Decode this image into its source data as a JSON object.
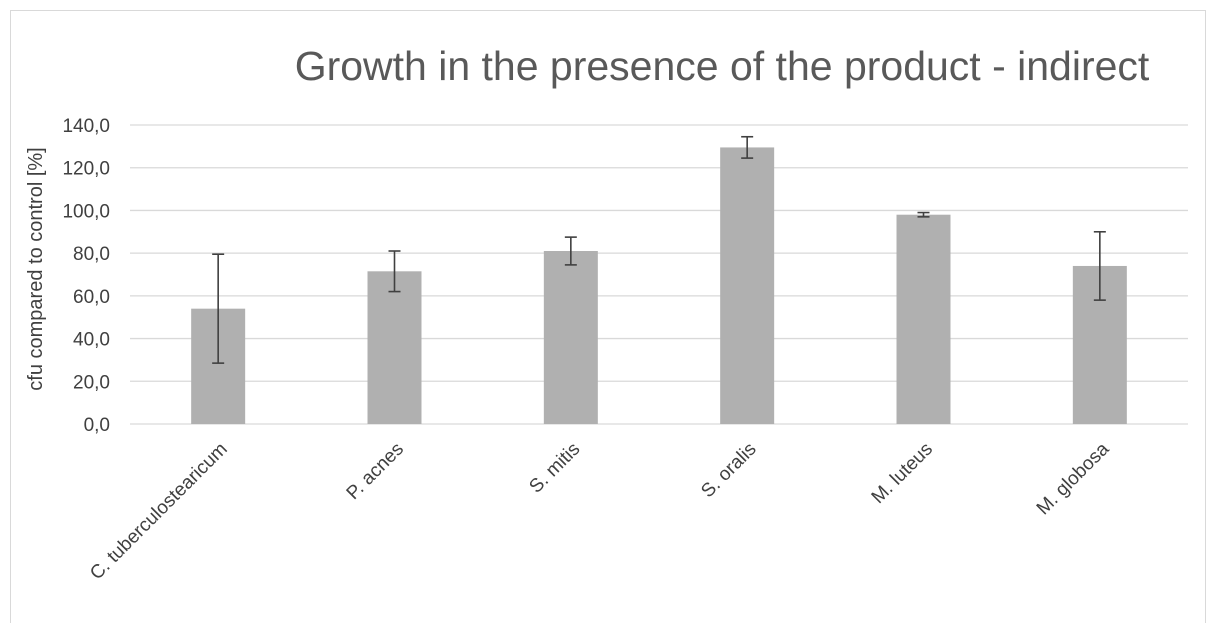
{
  "chart_data": {
    "type": "bar",
    "title": "Growth in the presence of the product - indirect",
    "ylabel": "cfu compared to control [%]",
    "xlabel": "",
    "categories": [
      "C. tuberculostearicum",
      "P. acnes",
      "S. mitis",
      "S. oralis",
      "M. luteus",
      "M. globosa"
    ],
    "values": [
      54.0,
      71.5,
      81.0,
      129.5,
      98.0,
      74.0
    ],
    "error_bars": [
      25.5,
      9.5,
      6.5,
      5.0,
      1.0,
      16.0
    ],
    "ylim": [
      0,
      140
    ],
    "yticks": [
      0,
      20,
      40,
      60,
      80,
      100,
      120,
      140
    ],
    "ytick_labels": [
      "0,0",
      "20,0",
      "40,0",
      "60,0",
      "80,0",
      "100,0",
      "120,0",
      "140,0"
    ],
    "grid": true,
    "legend": "none",
    "bar_color": "#b0b0b0",
    "gridline_color": "#d9d9d9",
    "errorbar_color": "#404040"
  }
}
